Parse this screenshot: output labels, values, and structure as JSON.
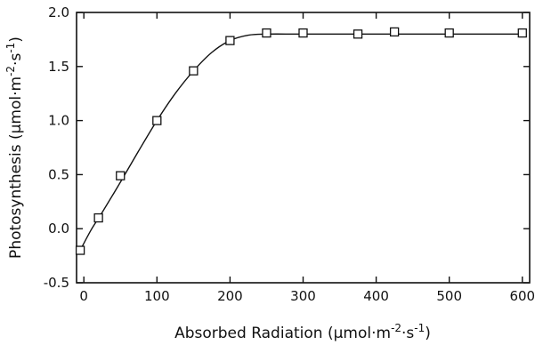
{
  "chart_data": {
    "type": "scatter",
    "title": "",
    "xlabel": {
      "main": "Absorbed Radiation (µmol·m",
      "sup1": "-2",
      "mid": "·s",
      "sup2": "-1",
      "end": ")"
    },
    "ylabel": {
      "main": "Photosynthesis (µmol·m",
      "sup1": "-2",
      "mid": "·s",
      "sup2": "-1",
      "end": ")"
    },
    "xlim": [
      -10,
      610
    ],
    "ylim": [
      -0.5,
      2.0
    ],
    "xticks": [
      0,
      100,
      200,
      300,
      400,
      500,
      600
    ],
    "yticks": [
      -0.5,
      0.0,
      0.5,
      1.0,
      1.5,
      2.0
    ],
    "xtick_labels": [
      "0",
      "100",
      "200",
      "300",
      "400",
      "500",
      "600"
    ],
    "ytick_labels": [
      "-0.5",
      "0.0",
      "0.5",
      "1.0",
      "1.5",
      "2.0"
    ],
    "grid": false,
    "series": [
      {
        "marker": "open-square",
        "x": [
          -5,
          20,
          50,
          100,
          150,
          200,
          250,
          300,
          375,
          425,
          500,
          600
        ],
        "y": [
          -0.2,
          0.1,
          0.49,
          1.0,
          1.46,
          1.74,
          1.81,
          1.81,
          1.8,
          1.82,
          1.81,
          1.81
        ]
      }
    ],
    "fit_curve": {
      "style": "solid",
      "x": [
        -5,
        10,
        25,
        50,
        75,
        100,
        125,
        150,
        175,
        200,
        225,
        250,
        300,
        400,
        500,
        600
      ],
      "y": [
        -0.2,
        -0.01,
        0.15,
        0.43,
        0.72,
        1.0,
        1.25,
        1.46,
        1.63,
        1.74,
        1.79,
        1.8,
        1.8,
        1.8,
        1.8,
        1.8
      ]
    }
  }
}
